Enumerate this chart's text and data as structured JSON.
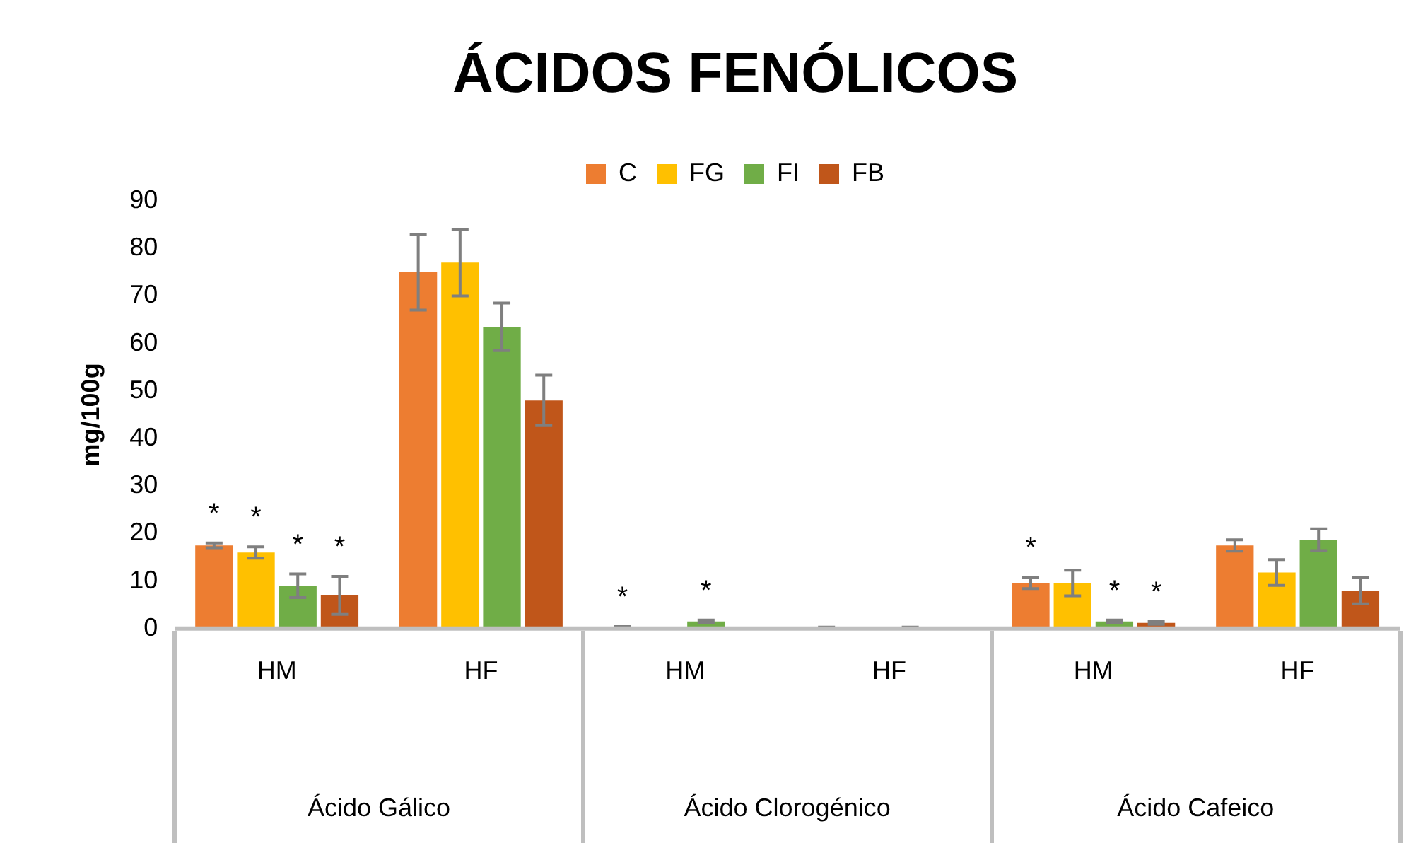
{
  "chart_data": {
    "type": "bar",
    "title": "ÁCIDOS FENÓLICOS",
    "ylabel": "mg/100g",
    "categories": [
      "HM",
      "HF",
      "HM",
      "HF",
      "HM",
      "HF"
    ],
    "annotations": [
      "Ácido Gálico",
      "Ácido Clorogénico",
      "Ácido Cafeico"
    ],
    "series": [
      {
        "name": "C",
        "color": "#ed7d31",
        "values": [
          17.5,
          75,
          0.3,
          0.2,
          9.6,
          17.5
        ],
        "errors": [
          0.5,
          8,
          0.1,
          0.1,
          1.2,
          1.2
        ],
        "value_labels": [
          "*",
          null,
          "*",
          null,
          "*",
          null
        ]
      },
      {
        "name": "FG",
        "color": "#ffc000",
        "values": [
          16,
          77,
          0,
          0,
          9.6,
          11.8
        ],
        "errors": [
          1.2,
          7,
          null,
          null,
          2.7,
          2.7
        ],
        "value_labels": [
          "*",
          null,
          null,
          null,
          null,
          null
        ]
      },
      {
        "name": "FI",
        "color": "#70ad47",
        "values": [
          9,
          63.5,
          1.5,
          0.2,
          1.5,
          18.7
        ],
        "errors": [
          2.5,
          5,
          0.3,
          0.1,
          0.3,
          2.3
        ],
        "value_labels": [
          "*",
          null,
          "*",
          null,
          "*",
          null
        ]
      },
      {
        "name": "FB",
        "color": "#c0561a",
        "values": [
          7,
          48,
          0,
          0,
          1.2,
          8
        ],
        "errors": [
          4,
          5.3,
          null,
          null,
          0.3,
          2.8
        ],
        "value_labels": [
          "*",
          null,
          null,
          null,
          "*",
          null
        ]
      }
    ],
    "ylim": [
      0,
      90
    ],
    "yticks": [
      0,
      10,
      20,
      30,
      40,
      50,
      60,
      70,
      80,
      90
    ],
    "grid": false,
    "legend": "top"
  }
}
